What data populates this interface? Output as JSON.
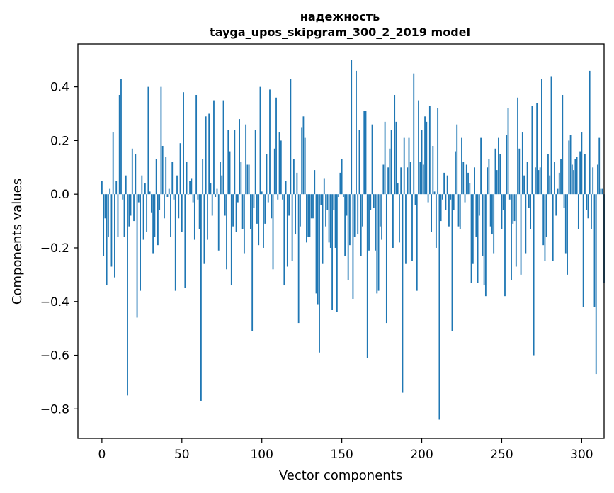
{
  "chart_data": {
    "type": "bar",
    "title_line1": "надежность",
    "title_line2": "tayga_upos_skipgram_300_2_2019 model",
    "xlabel": "Vector components",
    "ylabel": "Components values",
    "xlim": [
      -15,
      314
    ],
    "ylim": [
      -0.91,
      0.56
    ],
    "xticks": [
      0,
      50,
      100,
      150,
      200,
      250,
      300
    ],
    "xtick_labels": [
      "0",
      "50",
      "100",
      "150",
      "200",
      "250",
      "300"
    ],
    "yticks": [
      -0.8,
      -0.6,
      -0.4,
      -0.2,
      0.0,
      0.2,
      0.4
    ],
    "ytick_labels": [
      "−0.8",
      "−0.6",
      "−0.4",
      "−0.2",
      "0.0",
      "0.2",
      "0.4"
    ],
    "grid": false,
    "bar_color": "#1f77b4",
    "values": [
      0.05,
      -0.23,
      -0.09,
      -0.34,
      -0.16,
      0.02,
      -0.27,
      0.23,
      -0.31,
      0.05,
      -0.16,
      0.37,
      0.43,
      -0.02,
      -0.16,
      0.07,
      -0.75,
      -0.12,
      -0.08,
      0.17,
      -0.1,
      0.15,
      -0.46,
      -0.03,
      -0.36,
      0.07,
      -0.17,
      0.04,
      -0.14,
      0.4,
      0.01,
      -0.07,
      -0.22,
      -0.16,
      0.13,
      -0.19,
      -0.06,
      0.4,
      0.18,
      -0.09,
      0.14,
      -0.01,
      0.02,
      -0.16,
      0.12,
      -0.02,
      -0.36,
      0.07,
      -0.09,
      0.19,
      -0.14,
      0.38,
      -0.35,
      0.12,
      0.0,
      0.05,
      0.06,
      -0.03,
      -0.17,
      0.37,
      -0.02,
      -0.13,
      -0.77,
      0.13,
      -0.26,
      0.29,
      -0.17,
      0.3,
      0.04,
      -0.08,
      0.35,
      -0.01,
      0.02,
      -0.21,
      0.12,
      0.07,
      0.35,
      -0.08,
      -0.28,
      0.24,
      0.16,
      -0.34,
      -0.12,
      0.24,
      -0.14,
      -0.03,
      0.28,
      0.12,
      -0.13,
      -0.22,
      0.26,
      0.11,
      0.11,
      -0.13,
      -0.51,
      -0.05,
      0.24,
      -0.11,
      -0.19,
      0.4,
      0.01,
      -0.2,
      -0.11,
      0.15,
      -0.03,
      0.39,
      -0.09,
      -0.28,
      0.17,
      0.36,
      -0.02,
      0.23,
      0.2,
      -0.02,
      -0.34,
      0.05,
      -0.27,
      -0.08,
      0.43,
      -0.25,
      0.13,
      -0.15,
      0.08,
      -0.48,
      -0.12,
      0.25,
      0.29,
      0.21,
      -0.18,
      -0.16,
      -0.16,
      -0.09,
      -0.09,
      0.09,
      -0.37,
      -0.41,
      -0.59,
      -0.04,
      -0.26,
      0.06,
      -0.12,
      -0.06,
      -0.18,
      -0.2,
      -0.43,
      -0.06,
      -0.2,
      -0.44,
      -0.01,
      0.08,
      0.13,
      -0.01,
      -0.23,
      -0.08,
      -0.32,
      -0.19,
      0.5,
      -0.39,
      -0.16,
      0.46,
      -0.15,
      0.24,
      -0.23,
      -0.12,
      0.31,
      0.31,
      -0.61,
      -0.21,
      -0.06,
      0.26,
      -0.05,
      -0.21,
      -0.37,
      -0.36,
      -0.12,
      -0.17,
      0.11,
      0.27,
      -0.48,
      0.1,
      0.17,
      0.24,
      -0.2,
      0.37,
      0.27,
      0.04,
      -0.18,
      0.1,
      -0.74,
      0.21,
      -0.26,
      0.1,
      0.21,
      0.12,
      -0.25,
      0.45,
      -0.04,
      -0.36,
      0.35,
      0.12,
      0.24,
      0.11,
      0.29,
      0.27,
      -0.03,
      0.33,
      -0.14,
      0.18,
      0.01,
      -0.2,
      0.32,
      -0.84,
      -0.1,
      -0.02,
      0.08,
      -0.06,
      0.07,
      -0.12,
      -0.02,
      -0.51,
      -0.06,
      0.16,
      0.26,
      -0.12,
      -0.13,
      0.21,
      0.12,
      -0.03,
      0.11,
      0.08,
      0.04,
      -0.33,
      -0.26,
      0.1,
      -0.16,
      -0.33,
      -0.08,
      0.21,
      -0.23,
      -0.34,
      -0.38,
      0.1,
      0.13,
      -0.12,
      -0.15,
      -0.22,
      0.17,
      0.09,
      0.21,
      0.15,
      -0.13,
      -0.06,
      -0.38,
      0.22,
      0.32,
      -0.02,
      -0.32,
      -0.11,
      -0.1,
      -0.27,
      0.36,
      0.17,
      -0.3,
      0.23,
      0.07,
      -0.22,
      0.12,
      -0.05,
      -0.13,
      0.33,
      -0.6,
      0.1,
      0.34,
      0.09,
      0.1,
      0.43,
      -0.19,
      -0.25,
      -0.16,
      0.15,
      0.07,
      0.44,
      -0.25,
      0.12,
      -0.08,
      0.02,
      0.08,
      0.13,
      0.37,
      -0.05,
      -0.22,
      -0.3,
      0.2,
      0.22,
      0.11,
      0.09,
      0.13,
      0.14,
      -0.13,
      0.16,
      0.23,
      -0.42,
      0.15,
      -0.06,
      -0.09,
      0.46,
      -0.13,
      0.1,
      -0.42,
      -0.67,
      0.11,
      0.21,
      0.02,
      0.02,
      -0.33
    ]
  }
}
